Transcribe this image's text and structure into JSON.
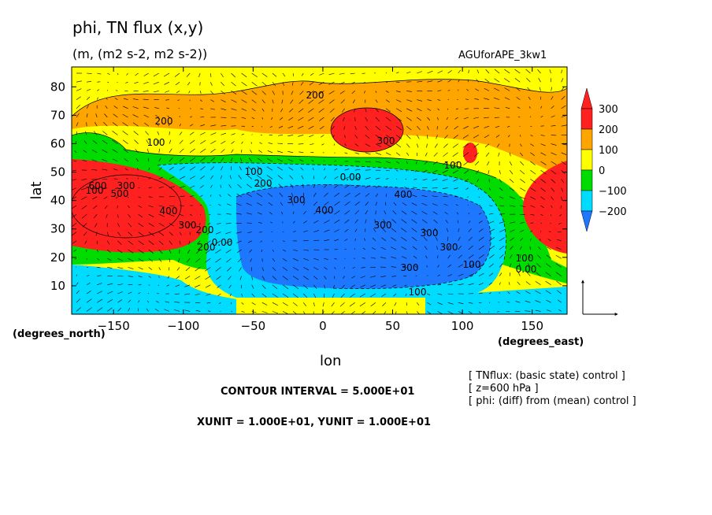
{
  "header": {
    "title": "phi, TN flux (x,y)",
    "units": "(m, (m2 s-2, m2 s-2))",
    "experiment": "AGUforAPE_3kw1"
  },
  "chart_data": {
    "type": "contour",
    "variable": "phi",
    "vector_field": "TN flux (x,y)",
    "xlabel": "lon",
    "ylabel": "lat",
    "x_unit_label": "(degrees_east)",
    "y_unit_label": "(degrees_north)",
    "xlim": [
      -180,
      175
    ],
    "ylim": [
      0,
      87
    ],
    "x_ticks": [
      -150,
      -100,
      -50,
      0,
      50,
      100,
      150
    ],
    "y_ticks": [
      10,
      20,
      30,
      40,
      50,
      60,
      70,
      80
    ],
    "colorbar": {
      "levels": [
        -200,
        -100,
        0,
        100,
        200,
        300
      ],
      "colors": [
        "#1e78ff",
        "#00dcff",
        "#00dc00",
        "#ffff00",
        "#ffa500",
        "#ff2020",
        "#ff2020"
      ]
    },
    "contour_labels": [
      "200",
      "200",
      "100",
      "100",
      "300",
      "200",
      "300",
      "100",
      "0.00",
      "200",
      "300",
      "400",
      "100",
      "300",
      "300",
      "300",
      "400",
      "300",
      "0.00",
      "100",
      "600",
      "500",
      "400",
      "300",
      "200",
      "100",
      "0.00",
      "100"
    ],
    "vector_ref": {
      "x": 10,
      "y": 10
    }
  },
  "footer": {
    "contour_interval": "CONTOUR INTERVAL = 5.000E+01",
    "units_line": "XUNIT = 1.000E+01, YUNIT = 1.000E+01",
    "notes": [
      "[ TNflux: (basic state) control ]",
      "[ z=600 hPa ]",
      "[ phi: (diff) from (mean) control ]"
    ]
  }
}
